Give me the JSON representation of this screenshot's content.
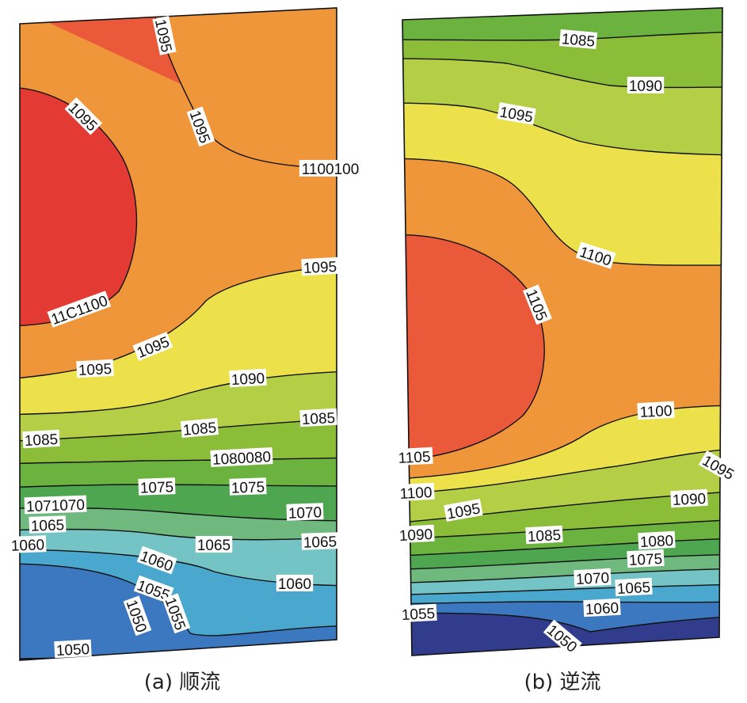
{
  "colors": {
    "c1045": "#313c8c",
    "c1050": "#3b78c0",
    "c1055": "#4aa7cd",
    "c1060": "#74c4c6",
    "c1065": "#6fb87e",
    "c1070": "#4fa651",
    "c1075": "#6cb23e",
    "c1080": "#8cbd39",
    "c1085": "#b4cf45",
    "c1090": "#ede14b",
    "c1095": "#f0963a",
    "c1100": "#e9593a",
    "c1105": "#e33a33"
  },
  "chart_data": [
    {
      "type": "contour",
      "caption": "(a) 顺流",
      "levels": [
        1050,
        1055,
        1060,
        1065,
        1070,
        1075,
        1080,
        1085,
        1090,
        1095,
        1100
      ],
      "contour_labels": [
        "1095",
        "1095",
        "1095",
        "1100100",
        "1095",
        "11C1100",
        "1095",
        "1095",
        "1090",
        "1085",
        "1085",
        "1085",
        "1080080",
        "1075",
        "1075",
        "1071070",
        "1070",
        "1065",
        "1060",
        "1065",
        "1065",
        "1060",
        "1060",
        "1055",
        "1055",
        "1050",
        "1050"
      ]
    },
    {
      "type": "contour",
      "caption": "(b) 逆流",
      "levels": [
        1050,
        1055,
        1060,
        1065,
        1070,
        1075,
        1080,
        1085,
        1090,
        1095,
        1100,
        1105
      ],
      "contour_labels": [
        "1085",
        "1090",
        "1095",
        "1100",
        "1105",
        "1100",
        "1105",
        "1095",
        "1100",
        "1090",
        "1095",
        "1090",
        "1085",
        "1080",
        "1075",
        "1070",
        "1065",
        "1060",
        "1055",
        "1050"
      ]
    }
  ]
}
